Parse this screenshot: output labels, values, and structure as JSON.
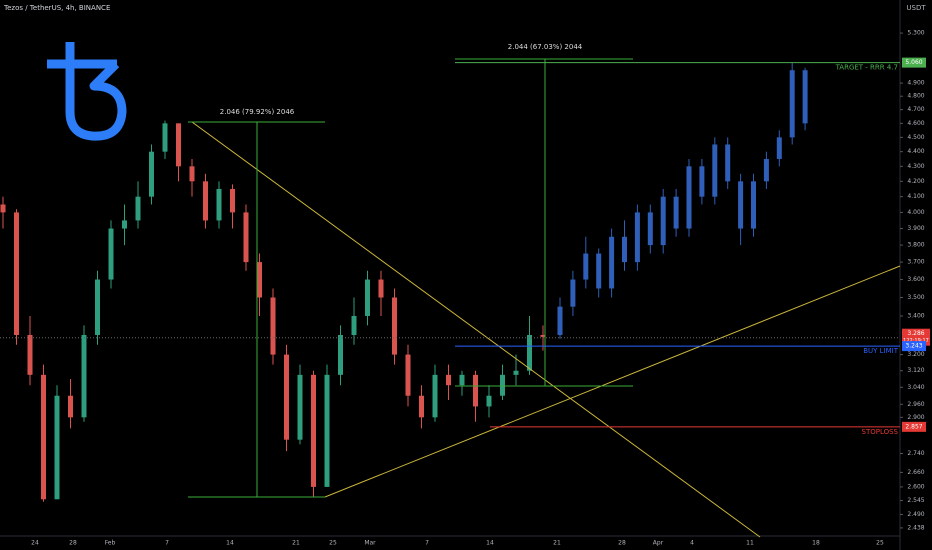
{
  "chart_data": {
    "type": "candlestick",
    "title": "Tezos / TetherUS, 4h, BINANCE",
    "currency": "USDT",
    "log_scale": true,
    "ylim": [
      2.43,
      5.41
    ],
    "yticks": [
      {
        "value": 5.3,
        "label": "5.300"
      },
      {
        "value": 4.9,
        "label": "4.900"
      },
      {
        "value": 4.8,
        "label": "4.800"
      },
      {
        "value": 4.7,
        "label": "4.700"
      },
      {
        "value": 4.6,
        "label": "4.600"
      },
      {
        "value": 4.5,
        "label": "4.500"
      },
      {
        "value": 4.4,
        "label": "4.400"
      },
      {
        "value": 4.3,
        "label": "4.300"
      },
      {
        "value": 4.2,
        "label": "4.200"
      },
      {
        "value": 4.1,
        "label": "4.100"
      },
      {
        "value": 4.0,
        "label": "4.000"
      },
      {
        "value": 3.9,
        "label": "3.900"
      },
      {
        "value": 3.8,
        "label": "3.800"
      },
      {
        "value": 3.7,
        "label": "3.700"
      },
      {
        "value": 3.6,
        "label": "3.600"
      },
      {
        "value": 3.5,
        "label": "3.500"
      },
      {
        "value": 3.4,
        "label": "3.400"
      },
      {
        "value": 3.2,
        "label": "3.200"
      },
      {
        "value": 3.12,
        "label": "3.120"
      },
      {
        "value": 3.04,
        "label": "3.040"
      },
      {
        "value": 2.96,
        "label": "2.960"
      },
      {
        "value": 2.9,
        "label": "2.900"
      },
      {
        "value": 2.74,
        "label": "2.740"
      },
      {
        "value": 2.66,
        "label": "2.660"
      },
      {
        "value": 2.6,
        "label": "2.600"
      },
      {
        "value": 2.545,
        "label": "2.545"
      },
      {
        "value": 2.49,
        "label": "2.490"
      },
      {
        "value": 2.438,
        "label": "2.438"
      }
    ],
    "x_labels": [
      "24",
      "28",
      "Feb",
      "7",
      "14",
      "21",
      "25",
      "Mar",
      "7",
      "14",
      "21",
      "28",
      "Apr",
      "4",
      "11",
      "18",
      "25"
    ],
    "actual": {
      "up_color": "#2e9e7e",
      "down_color": "#d9534f",
      "open": [
        4.05,
        4.0,
        3.3,
        3.1,
        2.55,
        3.0,
        2.9,
        3.3,
        3.6,
        3.9,
        3.95,
        4.1,
        4.4,
        4.6,
        4.3,
        4.2,
        3.95,
        4.15,
        4.0,
        3.7,
        3.5,
        3.2,
        2.8,
        3.1,
        2.6,
        3.1,
        3.3,
        3.4,
        3.6,
        3.5,
        3.2,
        3.0,
        2.9,
        3.1,
        3.05,
        3.1,
        2.95,
        3.0,
        3.1,
        3.12,
        3.3
      ],
      "high": [
        4.1,
        4.02,
        3.4,
        3.15,
        3.05,
        3.08,
        3.35,
        3.65,
        3.95,
        4.05,
        4.2,
        4.45,
        4.62,
        4.6,
        4.35,
        4.25,
        4.2,
        4.18,
        4.05,
        3.75,
        3.55,
        3.25,
        3.15,
        3.12,
        3.15,
        3.35,
        3.5,
        3.65,
        3.65,
        3.55,
        3.25,
        3.05,
        3.15,
        3.15,
        3.12,
        3.12,
        3.05,
        3.15,
        3.2,
        3.4,
        3.35
      ],
      "low": [
        3.9,
        3.25,
        3.05,
        2.54,
        2.55,
        2.85,
        2.88,
        3.25,
        3.55,
        3.8,
        3.9,
        4.05,
        4.35,
        4.2,
        4.1,
        3.9,
        3.9,
        3.9,
        3.65,
        3.4,
        3.15,
        2.75,
        2.78,
        2.56,
        2.6,
        3.05,
        3.25,
        3.35,
        3.4,
        3.15,
        2.95,
        2.85,
        2.88,
        2.98,
        3.0,
        2.88,
        2.9,
        2.98,
        3.05,
        3.1,
        3.22
      ],
      "close": [
        4.0,
        3.3,
        3.1,
        2.55,
        3.0,
        2.9,
        3.3,
        3.6,
        3.9,
        3.95,
        4.1,
        4.4,
        4.6,
        4.3,
        4.2,
        3.95,
        4.15,
        4.0,
        3.7,
        3.5,
        3.2,
        2.8,
        3.1,
        2.6,
        3.1,
        3.3,
        3.4,
        3.6,
        3.5,
        3.2,
        3.0,
        2.9,
        3.1,
        3.05,
        3.1,
        2.95,
        3.0,
        3.1,
        3.12,
        3.3,
        3.29
      ]
    },
    "projection": {
      "color": "#2f5fb8",
      "open": [
        3.3,
        3.45,
        3.6,
        3.75,
        3.55,
        3.85,
        3.7,
        4.0,
        3.8,
        4.1,
        3.9,
        4.3,
        4.1,
        4.45,
        4.2,
        3.9,
        4.2,
        4.35,
        4.5,
        5.0
      ],
      "high": [
        3.5,
        3.65,
        3.85,
        3.78,
        3.9,
        3.95,
        4.05,
        4.05,
        4.15,
        4.15,
        4.35,
        4.35,
        4.5,
        4.5,
        4.25,
        4.25,
        4.4,
        4.55,
        5.06,
        5.02
      ],
      "low": [
        3.28,
        3.4,
        3.55,
        3.5,
        3.5,
        3.65,
        3.65,
        3.75,
        3.75,
        3.85,
        3.85,
        4.05,
        4.05,
        4.15,
        3.8,
        3.85,
        4.15,
        4.3,
        4.45,
        4.55
      ],
      "close": [
        3.45,
        3.6,
        3.75,
        3.55,
        3.85,
        3.7,
        4.0,
        3.8,
        4.1,
        3.9,
        4.3,
        4.1,
        4.45,
        4.2,
        3.9,
        4.2,
        4.35,
        4.5,
        5.0,
        4.6
      ]
    },
    "levels": [
      {
        "label": "TARGET - RRR 4.7",
        "value": 5.06,
        "value_label": "5.060",
        "color": "#4caf50"
      },
      {
        "label": "BUY LIMIT",
        "value": 3.243,
        "value_label": "3.243",
        "color": "#2962ff"
      },
      {
        "label": "STOPLOSS",
        "value": 2.857,
        "value_label": "2.857",
        "color": "#e53935"
      }
    ],
    "last_price": {
      "value": 3.286,
      "label": "3.286",
      "countdown": "122:19:17",
      "color": "#e53935"
    },
    "measurements": [
      {
        "label": "2.046 (79.92%) 2046"
      },
      {
        "label": "2.044 (67.03%) 2044"
      }
    ]
  }
}
